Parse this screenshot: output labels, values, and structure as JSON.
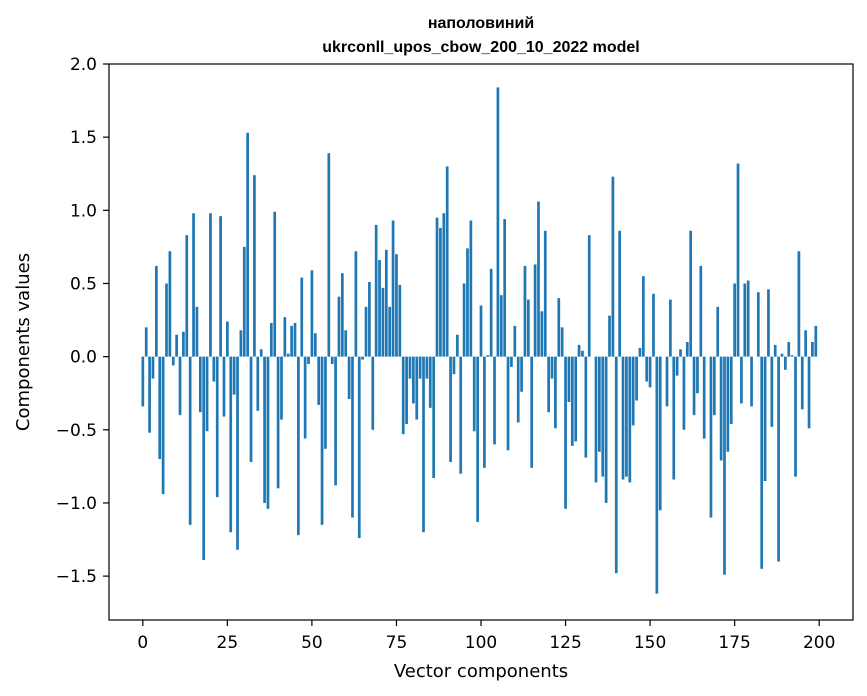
{
  "chart_data": {
    "type": "bar",
    "title_line1": "наполовиний",
    "title_line2": "ukrconll_upos_cbow_200_10_2022 model",
    "xlabel": "Vector components",
    "ylabel": "Components values",
    "xlim": [
      -10,
      210
    ],
    "ylim": [
      -1.8,
      2.0
    ],
    "xticks": [
      0,
      25,
      50,
      75,
      100,
      125,
      150,
      175,
      200
    ],
    "yticks": [
      -1.5,
      -1.0,
      -0.5,
      0.0,
      0.5,
      1.0,
      1.5,
      2.0
    ],
    "ytick_labels": [
      "−1.5",
      "−1.0",
      "−0.5",
      "0.0",
      "0.5",
      "1.0",
      "1.5",
      "2.0"
    ],
    "bar_color": "#1f77b4",
    "grid": false,
    "values": [
      -0.34,
      0.2,
      -0.52,
      -0.15,
      0.62,
      -0.7,
      -0.94,
      0.5,
      0.72,
      -0.06,
      0.15,
      -0.4,
      0.17,
      0.83,
      -1.15,
      0.98,
      0.34,
      -0.38,
      -1.39,
      -0.51,
      0.98,
      -0.17,
      -0.96,
      0.96,
      -0.41,
      0.24,
      -1.2,
      -0.26,
      -1.32,
      0.18,
      0.75,
      1.53,
      -0.72,
      1.24,
      -0.37,
      0.05,
      -1.0,
      -1.04,
      0.23,
      0.99,
      -0.9,
      -0.43,
      0.27,
      0.02,
      0.21,
      0.23,
      -1.22,
      0.54,
      -0.56,
      -0.05,
      0.59,
      0.16,
      -0.33,
      -1.15,
      -0.63,
      1.39,
      -0.05,
      -0.88,
      0.41,
      0.57,
      0.18,
      -0.29,
      -1.1,
      0.72,
      -1.24,
      -0.02,
      0.34,
      0.51,
      -0.5,
      0.9,
      0.66,
      0.47,
      0.73,
      0.34,
      0.93,
      0.7,
      0.49,
      -0.53,
      -0.46,
      -0.15,
      -0.32,
      -0.43,
      -0.15,
      -1.2,
      -0.15,
      -0.35,
      -0.83,
      0.95,
      0.88,
      0.98,
      1.3,
      -0.72,
      -0.12,
      0.15,
      -0.8,
      0.5,
      0.74,
      0.93,
      -0.51,
      -1.13,
      0.35,
      -0.76,
      0.01,
      0.6,
      -0.6,
      1.84,
      0.42,
      0.94,
      -0.64,
      -0.07,
      0.21,
      -0.45,
      -0.24,
      0.62,
      0.39,
      -0.76,
      0.63,
      1.06,
      0.31,
      0.86,
      -0.38,
      -0.15,
      -0.49,
      0.4,
      0.2,
      -1.04,
      -0.31,
      -0.61,
      -0.58,
      0.08,
      0.04,
      -0.69,
      0.83,
      0.0,
      -0.86,
      -0.65,
      -0.82,
      -1.0,
      0.28,
      1.23,
      -1.48,
      0.86,
      -0.84,
      -0.82,
      -0.86,
      -0.47,
      -0.3,
      0.06,
      0.55,
      -0.17,
      -0.21,
      0.43,
      -1.62,
      -1.05,
      0.0,
      -0.34,
      0.39,
      -0.84,
      -0.13,
      0.05,
      -0.5,
      0.1,
      0.86,
      -0.4,
      -0.25,
      0.62,
      -0.56,
      0.0,
      -1.1,
      -0.4,
      0.34,
      -0.71,
      -1.49,
      -0.65,
      -0.46,
      0.5,
      1.32,
      -0.32,
      0.5,
      0.52,
      -0.34,
      0.0,
      0.44,
      -1.45,
      -0.85,
      0.46,
      -0.48,
      0.08,
      -1.4,
      0.02,
      -0.09,
      0.1,
      0.01,
      -0.82,
      0.72,
      -0.36,
      0.18,
      -0.49,
      0.1,
      0.21
    ]
  }
}
